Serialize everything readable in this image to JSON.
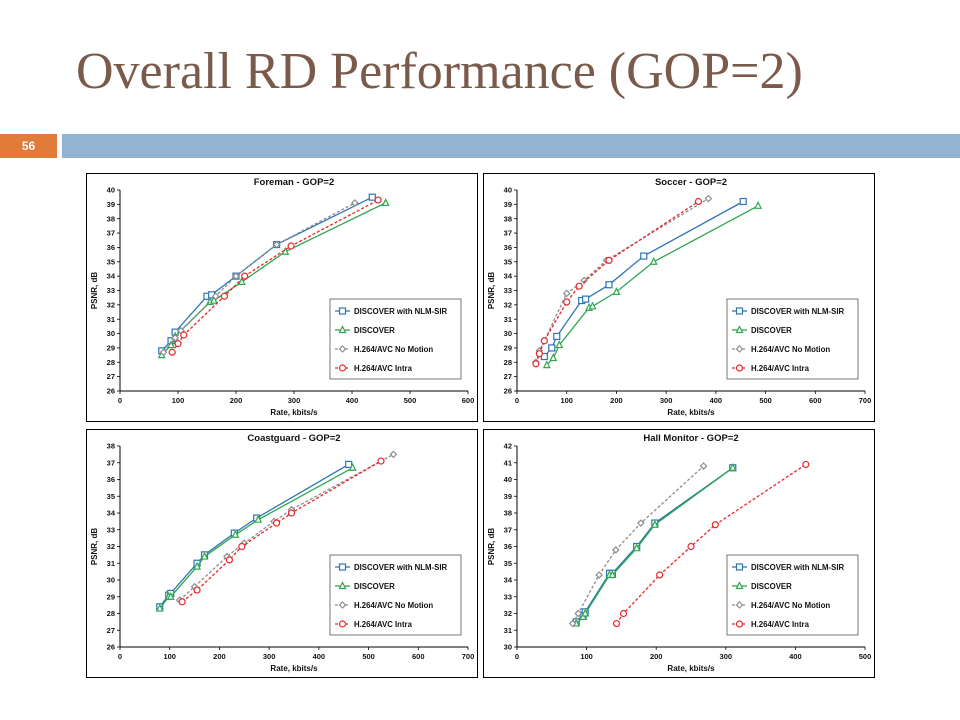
{
  "slide": {
    "title": "Overall RD Performance (GOP=2)",
    "number": "56"
  },
  "legend_labels": [
    "DISCOVER with NLM-SIR",
    "DISCOVER",
    "H.264/AVC No Motion",
    "H.264/AVC Intra"
  ],
  "series_colors": [
    "#2e75b6",
    "#2ea84e",
    "#8c8c8c",
    "#e8262b"
  ],
  "chart_data": [
    {
      "type": "line",
      "title": "Foreman - GOP=2",
      "xlabel": "Rate, kbits/s",
      "ylabel": "PSNR, dB",
      "xlim": [
        0,
        600
      ],
      "ylim": [
        26,
        40
      ],
      "xticks": [
        0,
        100,
        200,
        300,
        400,
        500,
        600
      ],
      "yticks": [
        26,
        27,
        28,
        29,
        30,
        31,
        32,
        33,
        34,
        35,
        36,
        37,
        38,
        39,
        40
      ],
      "grid": false,
      "legend_position": "bottom-right",
      "series": [
        {
          "name": "DISCOVER with NLM-SIR",
          "color": "#2e75b6",
          "marker": "square",
          "dash": "solid",
          "points": [
            [
              72,
              28.8
            ],
            [
              88,
              29.5
            ],
            [
              95,
              30.1
            ],
            [
              150,
              32.6
            ],
            [
              158,
              32.7
            ],
            [
              200,
              34.0
            ],
            [
              270,
              36.2
            ],
            [
              435,
              39.5
            ]
          ]
        },
        {
          "name": "DISCOVER",
          "color": "#2ea84e",
          "marker": "triangle",
          "dash": "solid",
          "points": [
            [
              72,
              28.5
            ],
            [
              88,
              29.2
            ],
            [
              95,
              29.8
            ],
            [
              155,
              32.2
            ],
            [
              162,
              32.3
            ],
            [
              210,
              33.6
            ],
            [
              285,
              35.7
            ],
            [
              458,
              39.1
            ]
          ]
        },
        {
          "name": "H.264/AVC No Motion",
          "color": "#8c8c8c",
          "marker": "diamond",
          "dash": "dashed",
          "points": [
            [
              75,
              28.7
            ],
            [
              95,
              29.7
            ],
            [
              105,
              30.2
            ],
            [
              165,
              32.6
            ],
            [
              200,
              34.0
            ],
            [
              270,
              36.2
            ],
            [
              405,
              39.1
            ]
          ]
        },
        {
          "name": "H.264/AVC Intra",
          "color": "#e8262b",
          "marker": "circle",
          "dash": "dashed",
          "points": [
            [
              90,
              28.7
            ],
            [
              100,
              29.3
            ],
            [
              110,
              29.9
            ],
            [
              180,
              32.6
            ],
            [
              215,
              34.0
            ],
            [
              295,
              36.1
            ],
            [
              445,
              39.3
            ]
          ]
        }
      ]
    },
    {
      "type": "line",
      "title": "Soccer - GOP=2",
      "xlabel": "Rate, kbits/s",
      "ylabel": "PSNR, dB",
      "xlim": [
        0,
        700
      ],
      "ylim": [
        26,
        40
      ],
      "xticks": [
        0,
        100,
        200,
        300,
        400,
        500,
        600,
        700
      ],
      "yticks": [
        26,
        27,
        28,
        29,
        30,
        31,
        32,
        33,
        34,
        35,
        36,
        37,
        38,
        39,
        40
      ],
      "grid": false,
      "legend_position": "bottom-right",
      "series": [
        {
          "name": "DISCOVER with NLM-SIR",
          "color": "#2e75b6",
          "marker": "square",
          "dash": "solid",
          "points": [
            [
              55,
              28.4
            ],
            [
              70,
              29.0
            ],
            [
              80,
              29.8
            ],
            [
              130,
              32.3
            ],
            [
              138,
              32.4
            ],
            [
              185,
              33.4
            ],
            [
              255,
              35.4
            ],
            [
              455,
              39.2
            ]
          ]
        },
        {
          "name": "DISCOVER",
          "color": "#2ea84e",
          "marker": "triangle",
          "dash": "solid",
          "points": [
            [
              60,
              27.8
            ],
            [
              73,
              28.3
            ],
            [
              85,
              29.2
            ],
            [
              145,
              31.8
            ],
            [
              152,
              31.9
            ],
            [
              200,
              32.9
            ],
            [
              275,
              35.0
            ],
            [
              485,
              38.9
            ]
          ]
        },
        {
          "name": "H.264/AVC No Motion",
          "color": "#8c8c8c",
          "marker": "diamond",
          "dash": "dashed",
          "points": [
            [
              38,
              28.0
            ],
            [
              45,
              28.8
            ],
            [
              55,
              29.5
            ],
            [
              100,
              32.8
            ],
            [
              135,
              33.7
            ],
            [
              180,
              35.1
            ],
            [
              385,
              39.4
            ]
          ]
        },
        {
          "name": "H.264/AVC Intra",
          "color": "#e8262b",
          "marker": "circle",
          "dash": "dashed",
          "points": [
            [
              38,
              27.9
            ],
            [
              45,
              28.6
            ],
            [
              55,
              29.5
            ],
            [
              100,
              32.2
            ],
            [
              125,
              33.3
            ],
            [
              185,
              35.1
            ],
            [
              365,
              39.2
            ]
          ]
        }
      ]
    },
    {
      "type": "line",
      "title": "Coastguard - GOP=2",
      "xlabel": "Rate, kbits/s",
      "ylabel": "PSNR, dB",
      "xlim": [
        0,
        700
      ],
      "ylim": [
        26,
        38
      ],
      "xticks": [
        0,
        100,
        200,
        300,
        400,
        500,
        600,
        700
      ],
      "yticks": [
        26,
        27,
        28,
        29,
        30,
        31,
        32,
        33,
        34,
        35,
        36,
        37,
        38
      ],
      "grid": false,
      "legend_position": "bottom-right",
      "series": [
        {
          "name": "DISCOVER with NLM-SIR",
          "color": "#2e75b6",
          "marker": "square",
          "dash": "solid",
          "points": [
            [
              80,
              28.4
            ],
            [
              98,
              29.1
            ],
            [
              102,
              29.2
            ],
            [
              155,
              31.0
            ],
            [
              170,
              31.5
            ],
            [
              230,
              32.8
            ],
            [
              275,
              33.7
            ],
            [
              460,
              36.9
            ]
          ]
        },
        {
          "name": "DISCOVER",
          "color": "#2ea84e",
          "marker": "triangle",
          "dash": "solid",
          "points": [
            [
              80,
              28.3
            ],
            [
              98,
              29.0
            ],
            [
              102,
              29.0
            ],
            [
              155,
              30.8
            ],
            [
              170,
              31.4
            ],
            [
              232,
              32.7
            ],
            [
              278,
              33.6
            ],
            [
              468,
              36.7
            ]
          ]
        },
        {
          "name": "H.264/AVC No Motion",
          "color": "#8c8c8c",
          "marker": "diamond",
          "dash": "dashed",
          "points": [
            [
              120,
              28.8
            ],
            [
              150,
              29.6
            ],
            [
              215,
              31.4
            ],
            [
              250,
              32.2
            ],
            [
              310,
              33.5
            ],
            [
              345,
              34.2
            ],
            [
              550,
              37.5
            ]
          ]
        },
        {
          "name": "H.264/AVC Intra",
          "color": "#e8262b",
          "marker": "circle",
          "dash": "dashed",
          "points": [
            [
              125,
              28.7
            ],
            [
              155,
              29.4
            ],
            [
              220,
              31.2
            ],
            [
              245,
              32.0
            ],
            [
              315,
              33.4
            ],
            [
              345,
              34.0
            ],
            [
              525,
              37.1
            ]
          ]
        }
      ]
    },
    {
      "type": "line",
      "title": "Hall Monitor - GOP=2",
      "xlabel": "Rate, kbits/s",
      "ylabel": "PSNR, dB",
      "xlim": [
        0,
        500
      ],
      "ylim": [
        30,
        42
      ],
      "xticks": [
        0,
        100,
        200,
        300,
        400,
        500
      ],
      "yticks": [
        30,
        31,
        32,
        33,
        34,
        35,
        36,
        37,
        38,
        39,
        40,
        41,
        42
      ],
      "grid": false,
      "legend_position": "bottom-right",
      "series": [
        {
          "name": "DISCOVER with NLM-SIR",
          "color": "#2e75b6",
          "marker": "square",
          "dash": "solid",
          "points": [
            [
              85,
              31.5
            ],
            [
              95,
              31.9
            ],
            [
              98,
              32.1
            ],
            [
              133,
              34.4
            ],
            [
              137,
              34.4
            ],
            [
              172,
              36.0
            ],
            [
              198,
              37.4
            ],
            [
              310,
              40.7
            ]
          ]
        },
        {
          "name": "DISCOVER",
          "color": "#2ea84e",
          "marker": "triangle",
          "dash": "solid",
          "points": [
            [
              85,
              31.4
            ],
            [
              95,
              31.8
            ],
            [
              98,
              32.0
            ],
            [
              133,
              34.3
            ],
            [
              137,
              34.3
            ],
            [
              172,
              35.9
            ],
            [
              198,
              37.3
            ],
            [
              310,
              40.7
            ]
          ]
        },
        {
          "name": "H.264/AVC No Motion",
          "color": "#8c8c8c",
          "marker": "diamond",
          "dash": "dashed",
          "points": [
            [
              80,
              31.4
            ],
            [
              88,
              32.0
            ],
            [
              118,
              34.3
            ],
            [
              142,
              35.8
            ],
            [
              178,
              37.4
            ],
            [
              268,
              40.8
            ]
          ]
        },
        {
          "name": "H.264/AVC Intra",
          "color": "#e8262b",
          "marker": "circle",
          "dash": "dashed",
          "points": [
            [
              143,
              31.4
            ],
            [
              153,
              32.0
            ],
            [
              205,
              34.3
            ],
            [
              250,
              36.0
            ],
            [
              285,
              37.3
            ],
            [
              415,
              40.9
            ]
          ]
        }
      ]
    }
  ]
}
